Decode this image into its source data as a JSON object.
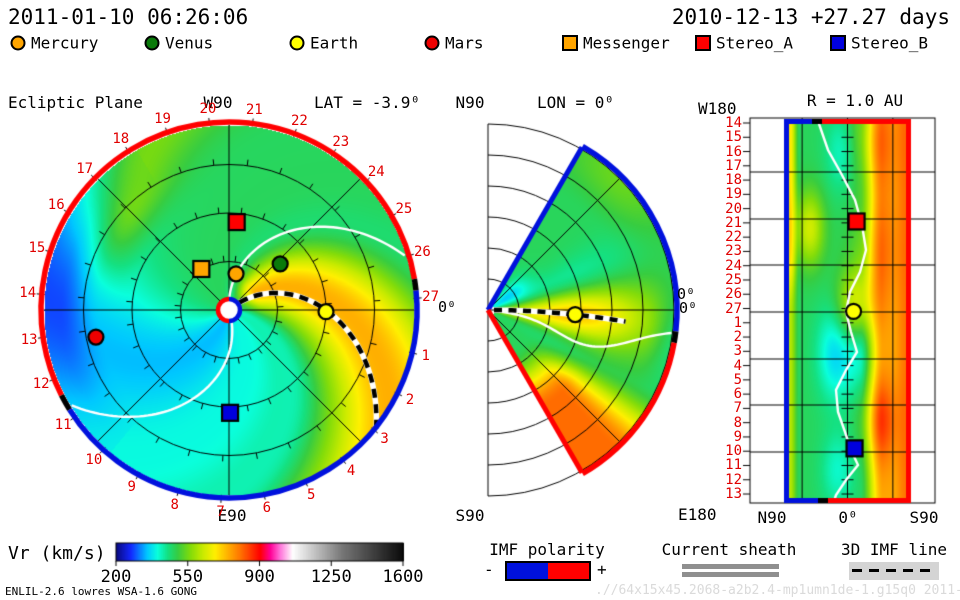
{
  "header": {
    "sim_time": "2011-01-10 06:26:06",
    "start_line": "2010-12-13 +27.27 days"
  },
  "legend": {
    "items": [
      {
        "name": "mercury",
        "label": "Mercury",
        "symbol": "circle",
        "color": "#ffa500"
      },
      {
        "name": "venus",
        "label": "Venus",
        "symbol": "circle",
        "color": "#0a7a0a"
      },
      {
        "name": "earth",
        "label": "Earth",
        "symbol": "circle",
        "color": "#ffff00"
      },
      {
        "name": "mars",
        "label": "Mars",
        "symbol": "circle",
        "color": "#ee0000"
      },
      {
        "name": "messenger",
        "label": "Messenger",
        "symbol": "square",
        "color": "#ffa500"
      },
      {
        "name": "stereo_a",
        "label": "Stereo_A",
        "symbol": "square",
        "color": "#ff0000"
      },
      {
        "name": "stereo_b",
        "label": "Stereo_B",
        "symbol": "square",
        "color": "#0000dd"
      }
    ]
  },
  "panels": {
    "ecliptic": {
      "title": "Ecliptic Plane",
      "lat_label": "LAT = -3.9⁰",
      "top_label": "W90",
      "bottom_label": "E90",
      "zero_label": "0⁰"
    },
    "meridional": {
      "north_label": "N90",
      "lon_label": "LON = 0⁰",
      "south_label": "S90",
      "zero_label": "0⁰"
    },
    "radial": {
      "title": "R = 1.0 AU",
      "top_left_label": "W180",
      "bottom_left_label": "E180",
      "x_labels": [
        "N90",
        "0⁰",
        "S90"
      ],
      "zero_label": "0⁰"
    }
  },
  "colorbar": {
    "label": "Vr (km/s)",
    "ticks": [
      "200",
      "550",
      "900",
      "1250",
      "1600"
    ]
  },
  "footer": {
    "model_line": "ENLIL-2.6 lowres WSA-1.6 GONG",
    "imf_label": "IMF polarity",
    "imf_minus": "-",
    "imf_plus": "+",
    "imf_neg_color": "#0011dd",
    "imf_pos_color": "#ff0000",
    "sheath_label": "Current sheath",
    "imf_line_label": "3D IMF line",
    "watermark": ".//64x15x45.2068-a2b2.4-mp1umn1de-1.g15q0   2011-01-05"
  },
  "chart_data": {
    "type": "heatmap",
    "quantity": "Vr (km/s)",
    "scale": {
      "min": 200,
      "max": 1600,
      "ticks": [
        200,
        550,
        900,
        1250,
        1600
      ]
    },
    "palette": [
      [
        200,
        "#0a0a82"
      ],
      [
        270,
        "#1428ff"
      ],
      [
        350,
        "#00c8ff"
      ],
      [
        400,
        "#0affdc"
      ],
      [
        450,
        "#14e182"
      ],
      [
        500,
        "#37cd41"
      ],
      [
        560,
        "#82dc0a"
      ],
      [
        620,
        "#c8eb00"
      ],
      [
        680,
        "#fff000"
      ],
      [
        740,
        "#ffb400"
      ],
      [
        800,
        "#ff7800"
      ],
      [
        860,
        "#ff3200"
      ],
      [
        900,
        "#ff0000"
      ],
      [
        950,
        "#ff0096"
      ],
      [
        1000,
        "#ff78dc"
      ],
      [
        1060,
        "#ffffff"
      ],
      [
        1300,
        "#787878"
      ],
      [
        1600,
        "#0a0a0a"
      ]
    ],
    "rotation_period_days": 27.27,
    "deg_per_day": 13.2,
    "panels": {
      "ecliptic": {
        "outer_radius_au": 1.9,
        "grid_circles_au": [
          0.5,
          1.0,
          1.5
        ],
        "day_marks": [
          1,
          2,
          3,
          4,
          5,
          6,
          7,
          8,
          9,
          10,
          11,
          12,
          13,
          14,
          15,
          16,
          17,
          18,
          19,
          20,
          21,
          22,
          23,
          24,
          25,
          26,
          27
        ],
        "boundary_polarity": {
          "negative_color": "#0011dd",
          "positive_color": "#ff0000",
          "positive_span_deg": [
            9.5,
            207
          ],
          "sheet_crossings_deg": [
            9.5,
            210
          ]
        },
        "sun": {
          "ring_left": "#ff0000",
          "ring_right": "#0011dd",
          "fill": "#ffffff"
        },
        "imf_spiral": {
          "earth_angle_deg": 0,
          "wind_deg_per_radius": 78
        },
        "markers": [
          {
            "name": "mercury",
            "angle_deg": 79,
            "r_au": 0.38,
            "symbol": "circle",
            "color": "#ffa500"
          },
          {
            "name": "venus",
            "angle_deg": 42,
            "r_au": 0.71,
            "symbol": "circle",
            "color": "#0a7a0a"
          },
          {
            "name": "earth",
            "angle_deg": -1,
            "r_au": 1.0,
            "symbol": "circle",
            "color": "#ffff00"
          },
          {
            "name": "mars",
            "angle_deg": 191.5,
            "r_au": 1.4,
            "symbol": "circle",
            "color": "#ee0000"
          },
          {
            "name": "messenger",
            "angle_deg": 124,
            "r_au": 0.51,
            "symbol": "square",
            "color": "#ffa500"
          },
          {
            "name": "stereo_a",
            "angle_deg": 85,
            "r_au": 0.91,
            "symbol": "square",
            "color": "#ff0000"
          },
          {
            "name": "stereo_b",
            "angle_deg": 270.6,
            "r_au": 1.06,
            "symbol": "square",
            "color": "#0000dd"
          }
        ]
      },
      "meridional": {
        "domain_lat_deg": [
          -60,
          60
        ],
        "boundary_polarity": {
          "negative_lat_span": [
            60,
            -6.5
          ],
          "positive_lat_span": [
            -10,
            -60
          ]
        },
        "markers": [
          {
            "name": "earth",
            "lat_deg": -3,
            "r_au": 0.9,
            "symbol": "circle",
            "color": "#ffff00"
          }
        ]
      },
      "radial": {
        "row_labels": [
          14,
          15,
          16,
          17,
          18,
          19,
          20,
          21,
          22,
          23,
          24,
          25,
          26,
          27,
          1,
          2,
          3,
          4,
          5,
          6,
          7,
          8,
          9,
          10,
          11,
          12,
          13
        ],
        "lat_grid_deg": [
          45,
          0,
          -45
        ],
        "lon_grid_step_deg": 45,
        "markers": [
          {
            "name": "stereo_a",
            "lat_deg": -9,
            "row_index": 6.9,
            "symbol": "square",
            "color": "#ff0000"
          },
          {
            "name": "earth",
            "lat_deg": -6,
            "row_index": 13.2,
            "symbol": "circle",
            "color": "#ffff00"
          },
          {
            "name": "stereo_b",
            "lat_deg": -7,
            "row_index": 22.8,
            "symbol": "square",
            "color": "#0000dd"
          }
        ]
      }
    }
  }
}
